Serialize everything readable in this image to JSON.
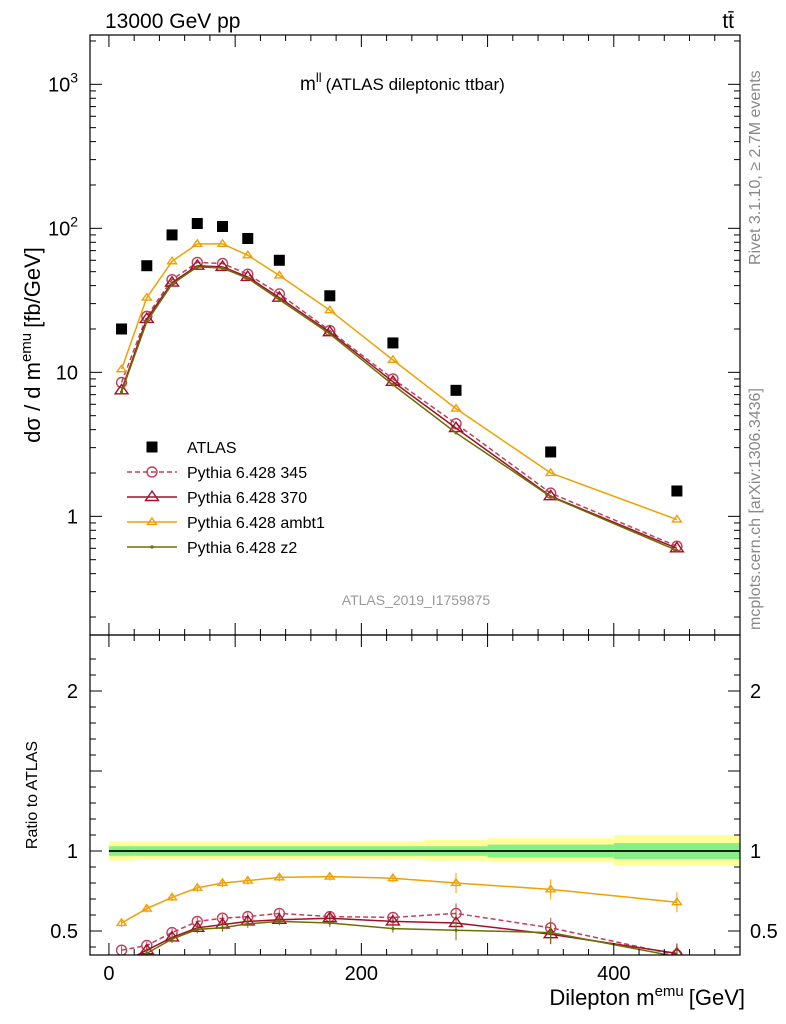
{
  "header": {
    "energy_label": "13000 GeV pp",
    "process_label": "tt̄"
  },
  "side_labels": {
    "rivet": "Rivet 3.1.10, ≥ 2.7M events",
    "mcplots": "mcplots.cern.ch [arXiv:1306.3436]"
  },
  "chart_data": [
    {
      "type": "scatter",
      "title_main": "m",
      "title_sup": "ll",
      "title_rest": "(ATLAS dileptonic ttbar)",
      "ylabel": "dσ / d m",
      "ylabel_sup": "emu",
      "ylabel_unit": "[fb/GeV]",
      "y_scale": "log",
      "ylim": [
        0.15,
        2200
      ],
      "y_ticks": [
        {
          "value": 1,
          "base": "1",
          "exp": ""
        },
        {
          "value": 10,
          "base": "10",
          "exp": ""
        },
        {
          "value": 100,
          "base": "10",
          "exp": "2"
        },
        {
          "value": 1000,
          "base": "10",
          "exp": "3"
        }
      ],
      "xlim": [
        -15,
        500
      ],
      "watermark": "ATLAS_2019_I1759875",
      "x": [
        10,
        30,
        50,
        70,
        90,
        110,
        135,
        175,
        225,
        275,
        350,
        450
      ],
      "series": [
        {
          "name": "ATLAS",
          "color": "#000000",
          "style": "data",
          "values": [
            20,
            55,
            90,
            108,
            103,
            85,
            60,
            34,
            16,
            7.5,
            2.8,
            1.5
          ]
        },
        {
          "name": "Pythia 6.428 345",
          "color": "#c0405a",
          "style": "dashed-circle",
          "values": [
            8.5,
            24.5,
            44,
            58,
            57,
            48,
            35,
            19.5,
            9.0,
            4.4,
            1.45,
            0.62
          ]
        },
        {
          "name": "Pythia 6.428 370",
          "color": "#a0102a",
          "style": "solid-triangle",
          "values": [
            7.5,
            23.5,
            42,
            55,
            54,
            46,
            33,
            19.0,
            8.6,
            4.1,
            1.38,
            0.6
          ]
        },
        {
          "name": "Pythia 6.428 ambt1",
          "color": "#f0a000",
          "style": "solid-triangle-small",
          "values": [
            10.5,
            33,
            59,
            78,
            78,
            65,
            47,
            27,
            12.2,
            5.6,
            2.0,
            0.95
          ]
        },
        {
          "name": "Pythia 6.428 z2",
          "color": "#6b7000",
          "style": "solid-dot",
          "values": [
            7.3,
            22.5,
            41,
            54,
            53,
            45,
            32,
            18.5,
            8.2,
            3.8,
            1.37,
            0.58
          ]
        }
      ]
    },
    {
      "type": "line",
      "ylabel": "Ratio to ATLAS",
      "xlabel": "Dilepton m",
      "xlabel_sup": "emu",
      "xlabel_unit": "[GeV]",
      "xlim": [
        -15,
        500
      ],
      "ylim": [
        0.35,
        2.35
      ],
      "x_ticks": [
        0,
        200,
        400
      ],
      "y_ticks": [
        0.5,
        1,
        2
      ],
      "bands": [
        {
          "x_from": 0,
          "x_to": 20,
          "yellow": [
            0.94,
            1.06
          ],
          "green": [
            0.97,
            1.03
          ]
        },
        {
          "x_from": 20,
          "x_to": 250,
          "yellow": [
            0.95,
            1.06
          ],
          "green": [
            0.97,
            1.03
          ]
        },
        {
          "x_from": 250,
          "x_to": 300,
          "yellow": [
            0.94,
            1.07
          ],
          "green": [
            0.97,
            1.03
          ]
        },
        {
          "x_from": 300,
          "x_to": 400,
          "yellow": [
            0.93,
            1.08
          ],
          "green": [
            0.96,
            1.04
          ]
        },
        {
          "x_from": 400,
          "x_to": 500,
          "yellow": [
            0.91,
            1.1
          ],
          "green": [
            0.95,
            1.05
          ]
        }
      ],
      "x": [
        10,
        30,
        50,
        70,
        90,
        110,
        135,
        175,
        225,
        275,
        350,
        450
      ],
      "series": [
        {
          "name": "Pythia 6.428 345",
          "values": [
            0.38,
            0.41,
            0.49,
            0.56,
            0.58,
            0.59,
            0.61,
            0.59,
            0.585,
            0.61,
            0.52,
            0.35
          ]
        },
        {
          "name": "Pythia 6.428 370",
          "values": [
            0.3,
            0.38,
            0.46,
            0.52,
            0.54,
            0.56,
            0.57,
            0.58,
            0.56,
            0.55,
            0.48,
            0.36
          ]
        },
        {
          "name": "Pythia 6.428 ambt1",
          "values": [
            0.55,
            0.64,
            0.71,
            0.77,
            0.8,
            0.815,
            0.835,
            0.84,
            0.83,
            0.8,
            0.76,
            0.68
          ]
        },
        {
          "name": "Pythia 6.428 z2",
          "values": [
            0.28,
            0.36,
            0.45,
            0.51,
            0.52,
            0.545,
            0.56,
            0.55,
            0.515,
            0.505,
            0.49,
            0.34
          ]
        }
      ]
    }
  ]
}
